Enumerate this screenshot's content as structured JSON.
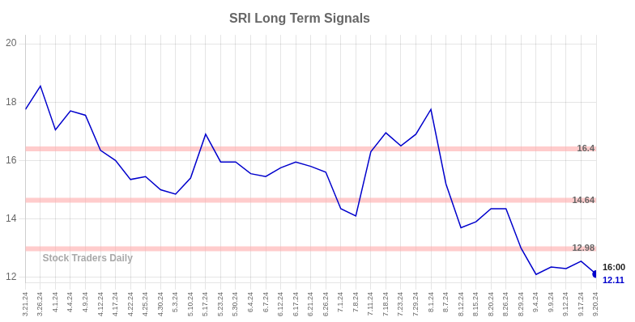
{
  "chart_data": {
    "type": "line",
    "title": "SRI Long Term Signals",
    "categories": [
      "3.21.24",
      "3.26.24",
      "4.1.24",
      "4.4.24",
      "4.9.24",
      "4.12.24",
      "4.17.24",
      "4.22.24",
      "4.25.24",
      "4.30.24",
      "5.3.24",
      "5.10.24",
      "5.17.24",
      "5.23.24",
      "5.30.24",
      "6.4.24",
      "6.7.24",
      "6.12.24",
      "6.17.24",
      "6.21.24",
      "6.26.24",
      "7.1.24",
      "7.8.24",
      "7.11.24",
      "7.18.24",
      "7.23.24",
      "7.29.24",
      "8.1.24",
      "8.7.24",
      "8.12.24",
      "8.15.24",
      "8.20.24",
      "8.26.24",
      "8.29.24",
      "9.4.24",
      "9.9.24",
      "9.12.24",
      "9.17.24",
      "9.20.24"
    ],
    "values": [
      17.75,
      18.55,
      17.05,
      17.7,
      17.55,
      16.35,
      16.0,
      15.35,
      15.45,
      15.0,
      14.85,
      15.4,
      16.9,
      15.95,
      15.95,
      15.55,
      15.45,
      15.75,
      15.95,
      15.8,
      15.6,
      14.35,
      14.1,
      16.3,
      16.95,
      16.5,
      16.9,
      17.75,
      15.2,
      13.7,
      13.9,
      14.35,
      14.35,
      13.0,
      12.1,
      12.35,
      12.3,
      12.55,
      12.11
    ],
    "color": "#0000cc",
    "ylim": [
      11.8,
      20.3
    ],
    "yticks": [
      12,
      14,
      16,
      18,
      20
    ],
    "grid": true,
    "hlines": [
      {
        "value": 16.4,
        "label": "16.4",
        "color": "#ffaaaa"
      },
      {
        "value": 14.64,
        "label": "14.64",
        "color": "#ffaaaa"
      },
      {
        "value": 12.98,
        "label": "12.98",
        "color": "#ffaaaa"
      }
    ],
    "watermark": "Stock Traders Daily",
    "last_point": {
      "label": "16:00",
      "value_label": "12.11"
    }
  }
}
